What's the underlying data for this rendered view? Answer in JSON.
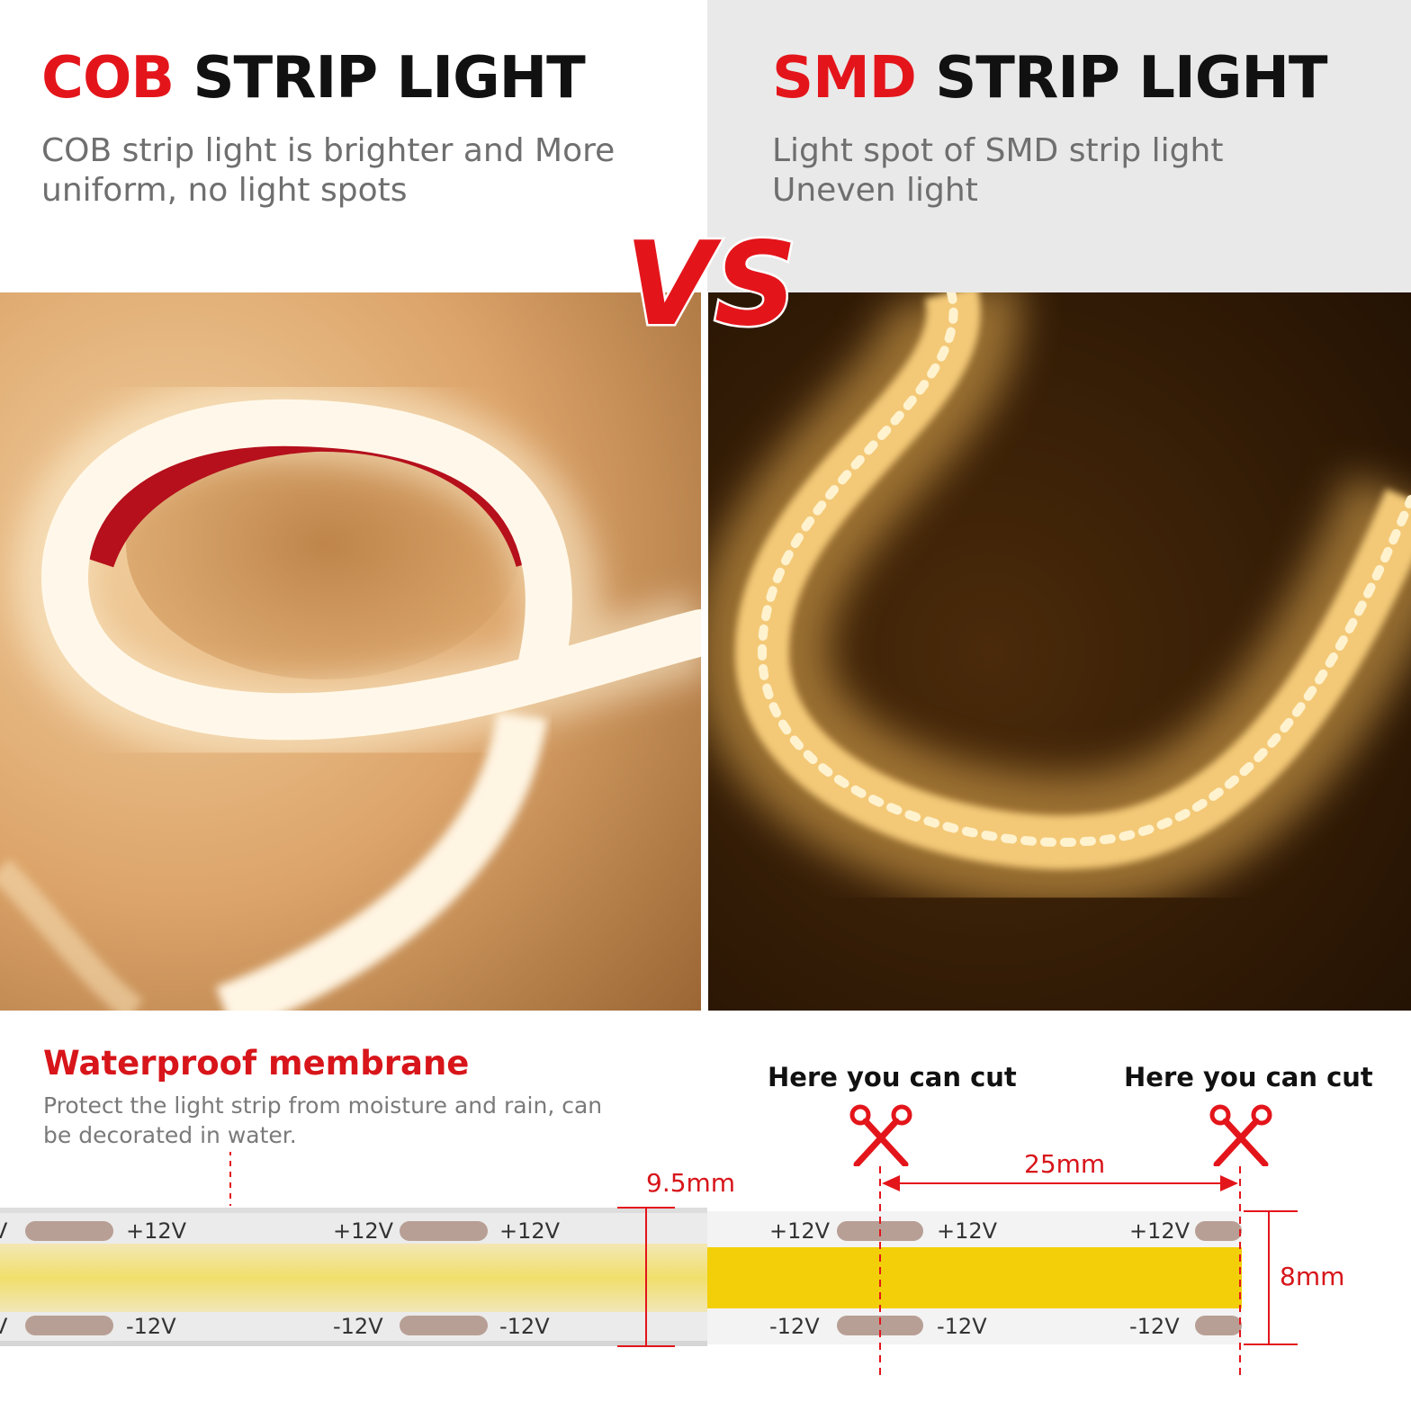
{
  "cob": {
    "title_accent": "COB",
    "title_rest": "STRIP LIGHT",
    "description_line1": "COB strip light is brighter and More",
    "description_line2": "uniform, no light spots"
  },
  "smd": {
    "title_accent": "SMD",
    "title_rest": "STRIP LIGHT",
    "description_line1": "Light spot of SMD strip light",
    "description_line2": "Uneven light"
  },
  "vs_label": "VS",
  "waterproof": {
    "title": "Waterproof membrane",
    "description": "Protect the light strip from moisture and rain, can be decorated in water."
  },
  "cut_labels": [
    "Here you can cut",
    "Here you can cut"
  ],
  "measurements": {
    "cob_width": "9.5mm",
    "smd_width": "8mm",
    "cut_spacing": "25mm"
  },
  "pads": {
    "plus": "+12V",
    "minus": "-12V",
    "edge_fragment": "V"
  },
  "colors": {
    "accent_red": "#e3151b",
    "strip_yellow": "#f2cf08",
    "header_gray": "#e9e9e9"
  }
}
